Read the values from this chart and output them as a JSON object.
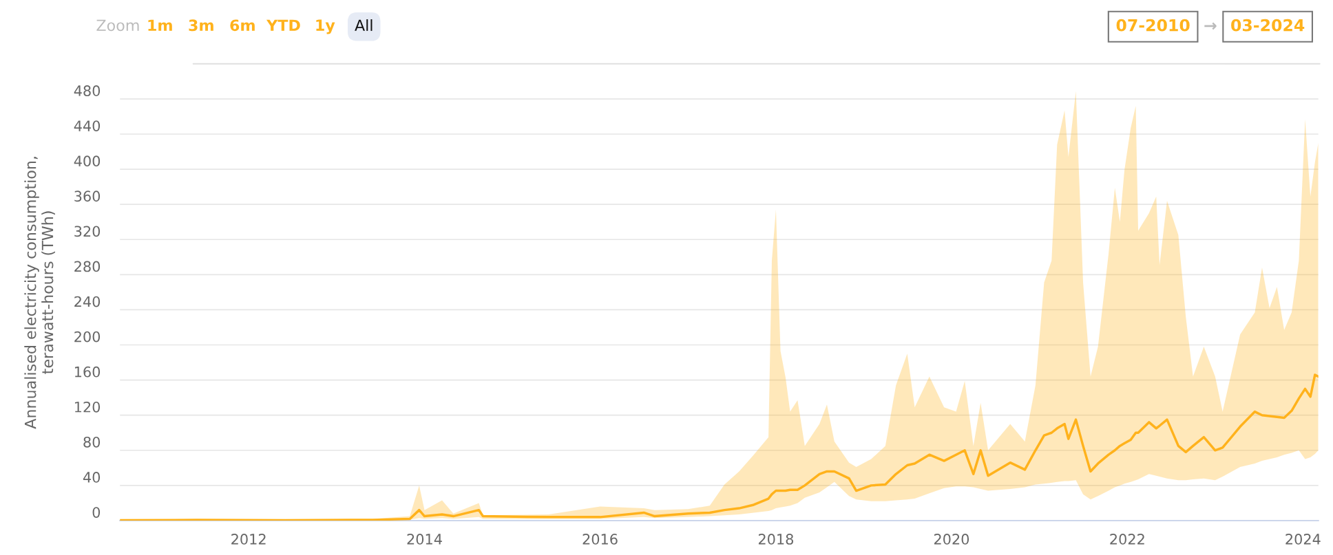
{
  "chart_data": {
    "type": "line",
    "ylabel": "Annualised electricity consumption,\nterawatt-hours (TWh)",
    "annotations": [
      "Zoom",
      "1m",
      "3m",
      "6m",
      "YTD",
      "1y",
      "All",
      "07-2010",
      "→",
      "03-2024"
    ],
    "x": [
      "2010-07-15",
      "2011-06-01",
      "2012-06-01",
      "2013-06-01",
      "2013-11-01",
      "2013-12-10",
      "2014-01-01",
      "2014-03-15",
      "2014-05-01",
      "2014-08-15",
      "2014-09-01",
      "2015-06-01",
      "2016-01-01",
      "2016-07-01",
      "2016-08-15",
      "2017-01-01",
      "2017-04-01",
      "2017-06-01",
      "2017-08-01",
      "2017-10-01",
      "2017-12-01",
      "2017-12-15",
      "2018-01-01",
      "2018-01-20",
      "2018-02-10",
      "2018-03-01",
      "2018-04-01",
      "2018-05-01",
      "2018-07-01",
      "2018-08-01",
      "2018-09-01",
      "2018-11-01",
      "2018-12-01",
      "2019-02-01",
      "2019-04-01",
      "2019-05-15",
      "2019-07-01",
      "2019-08-01",
      "2019-10-01",
      "2019-12-01",
      "2020-01-20",
      "2020-02-25",
      "2020-04-01",
      "2020-05-01",
      "2020-06-01",
      "2020-09-01",
      "2020-11-01",
      "2020-12-15",
      "2021-01-20",
      "2021-02-20",
      "2021-03-15",
      "2021-04-15",
      "2021-05-01",
      "2021-06-01",
      "2021-07-01",
      "2021-08-01",
      "2021-09-01",
      "2021-10-15",
      "2021-11-10",
      "2021-12-01",
      "2021-12-20",
      "2022-01-15",
      "2022-02-05",
      "2022-02-15",
      "2022-04-01",
      "2022-05-01",
      "2022-05-15",
      "2022-06-15",
      "2022-08-01",
      "2022-09-01",
      "2022-10-01",
      "2022-11-15",
      "2023-01-01",
      "2023-02-01",
      "2023-04-15",
      "2023-06-15",
      "2023-07-15",
      "2023-08-15",
      "2023-09-15",
      "2023-10-15",
      "2023-11-15",
      "2023-12-15",
      "2024-01-10",
      "2024-02-01",
      "2024-02-20",
      "2024-03-05"
    ],
    "series": [
      {
        "color": "#ffb21c",
        "values": [
          0.3,
          0.8,
          0.4,
          0.8,
          2,
          12,
          5,
          7,
          5,
          12,
          5,
          4,
          4,
          9,
          5,
          8,
          9,
          12,
          14,
          18,
          25,
          30,
          34,
          34,
          34,
          35,
          35,
          40,
          53,
          56,
          56,
          48,
          34,
          40,
          41,
          53,
          63,
          65,
          75,
          68,
          75,
          80,
          53,
          80,
          51,
          66,
          58,
          80,
          97,
          100,
          105,
          110,
          93,
          115,
          85,
          56,
          65,
          75,
          80,
          85,
          88,
          92,
          100,
          100,
          112,
          105,
          108,
          115,
          85,
          78,
          85,
          95,
          80,
          83,
          107,
          124,
          120,
          119,
          118,
          117,
          125,
          139,
          150,
          141,
          166,
          164
        ],
        "lower": [
          0.1,
          0.3,
          0.2,
          0.3,
          1,
          3,
          2,
          3,
          2,
          4,
          2,
          2,
          2,
          4,
          3,
          4,
          5,
          6,
          7,
          9,
          11,
          12,
          14,
          15,
          16,
          17,
          20,
          26,
          32,
          38,
          44,
          28,
          24,
          22,
          22,
          23,
          24,
          25,
          31,
          37,
          39,
          39,
          38,
          36,
          34,
          36,
          38,
          41,
          42,
          43,
          44,
          45,
          45,
          46,
          30,
          24,
          28,
          34,
          38,
          40,
          42,
          44,
          46,
          47,
          53,
          51,
          50,
          48,
          46,
          46,
          47,
          48,
          46,
          50,
          61,
          65,
          68,
          70,
          72,
          75,
          77,
          80,
          70,
          72,
          76,
          80
        ],
        "upper": [
          0.6,
          1.5,
          1,
          2,
          5,
          40,
          12,
          23,
          8,
          20,
          6,
          7,
          16,
          14,
          12,
          13,
          17,
          41,
          56,
          75,
          95,
          296,
          354,
          193,
          163,
          124,
          137,
          85,
          110,
          132,
          90,
          66,
          61,
          70,
          85,
          154,
          190,
          129,
          164,
          129,
          124,
          159,
          85,
          134,
          80,
          110,
          90,
          154,
          271,
          296,
          428,
          467,
          414,
          489,
          271,
          164,
          198,
          304,
          379,
          340,
          399,
          447,
          472,
          330,
          350,
          369,
          291,
          364,
          325,
          232,
          164,
          198,
          164,
          124,
          212,
          237,
          288,
          242,
          266,
          217,
          237,
          296,
          457,
          369,
          408,
          430
        ]
      }
    ],
    "xlim": [
      "2010-07-15",
      "2024-03-05"
    ],
    "xticks": [
      {
        "value": "2012-01-01",
        "label": "2012"
      },
      {
        "value": "2014-01-01",
        "label": "2014"
      },
      {
        "value": "2016-01-01",
        "label": "2016"
      },
      {
        "value": "2018-01-01",
        "label": "2018"
      },
      {
        "value": "2020-01-01",
        "label": "2020"
      },
      {
        "value": "2022-01-01",
        "label": "2022"
      },
      {
        "value": "2024-01-01",
        "label": "2024"
      }
    ],
    "ylim": [
      0,
      520
    ],
    "yticks": [
      0,
      40,
      80,
      120,
      160,
      200,
      240,
      280,
      320,
      360,
      400,
      440,
      480
    ],
    "grid": "y",
    "legend": false,
    "marker": "none",
    "line_style": "solid"
  }
}
